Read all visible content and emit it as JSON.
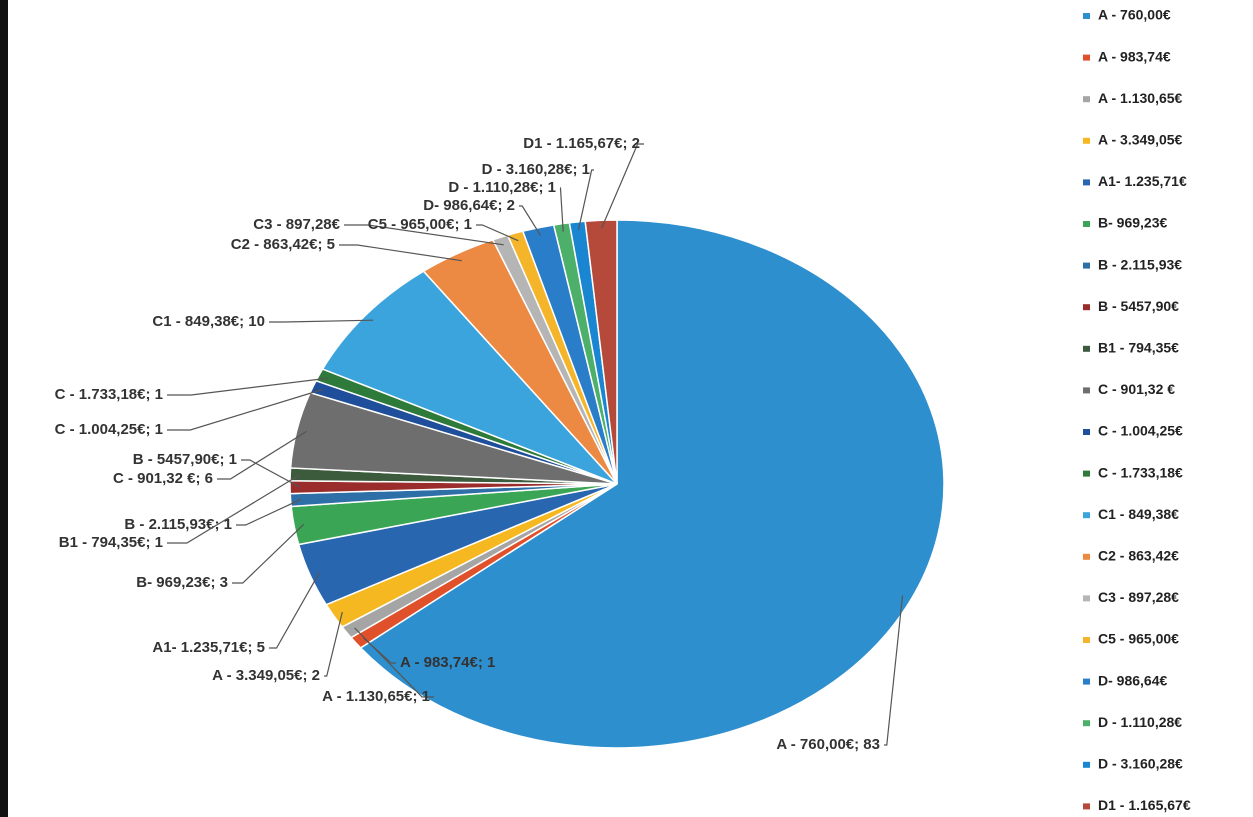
{
  "chart_data": {
    "type": "pie",
    "categories": [
      "A - 760,00€",
      "A - 983,74€",
      "A - 1.130,65€",
      "A - 3.349,05€",
      "A1- 1.235,71€",
      "B- 969,23€",
      "B - 2.115,93€",
      "B - 5457,90€",
      "B1 - 794,35€",
      "C - 901,32 €",
      "C - 1.004,25€",
      "C - 1.733,18€",
      "C1 - 849,38€",
      "C2 - 863,42€",
      "C3 - 897,28€",
      "C5 - 965,00€",
      "D- 986,64€",
      "D - 1.110,28€",
      "D - 3.160,28€",
      "D1 - 1.165,67€"
    ],
    "values": [
      83,
      1,
      1,
      2,
      5,
      3,
      1,
      1,
      1,
      6,
      1,
      1,
      10,
      5,
      1,
      1,
      2,
      1,
      1,
      2
    ],
    "value_labels": [
      "A - 760,00€; 83",
      "A - 983,74€; 1",
      "A - 1.130,65€; 1",
      "A - 3.349,05€; 2",
      "A1- 1.235,71€; 5",
      "B- 969,23€; 3",
      "B - 2.115,93€; 1",
      "B - 5457,90€; 1",
      "B1 - 794,35€; 1",
      "C - 901,32 €; 6",
      "C - 1.004,25€; 1",
      "C - 1.733,18€; 1",
      "C1 - 849,38€; 10",
      "C2 - 863,42€; 5",
      "C3 - 897,28€",
      "C5 - 965,00€; 1",
      "D- 986,64€; 2",
      "D - 1.110,28€; 1",
      "D - 3.160,28€; 1",
      "D1 - 1.165,67€; 2"
    ],
    "colors": [
      "#2e8fce",
      "#e0502a",
      "#a5a5a5",
      "#f5b820",
      "#2966b0",
      "#3aa655",
      "#2e6fa8",
      "#9b2c2c",
      "#3c5a3c",
      "#6e6e6e",
      "#1f4f9a",
      "#2e7a3a",
      "#3ba4dd",
      "#ec8a43",
      "#b5b5b5",
      "#f5b52a",
      "#2a7ec9",
      "#4cb06a",
      "#1a86d1",
      "#b54a3a"
    ],
    "legend": "right"
  }
}
